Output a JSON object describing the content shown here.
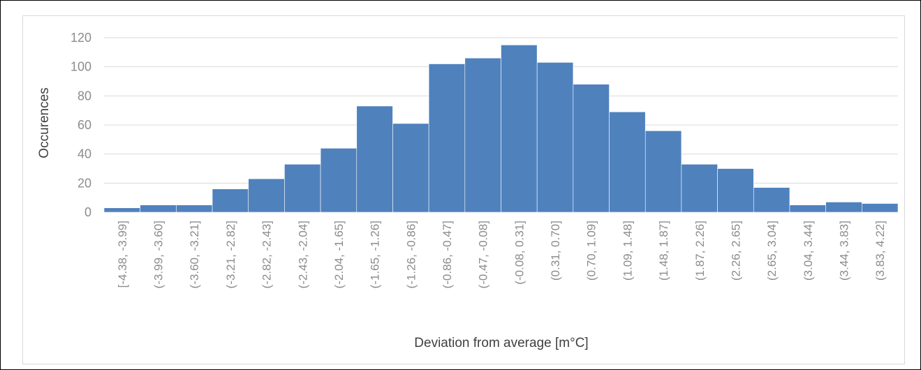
{
  "chart_data": {
    "type": "bar",
    "title": "",
    "xlabel": "Deviation from average [m°C]",
    "ylabel": "Occurences",
    "ylim": [
      0,
      120
    ],
    "yticks": [
      "0",
      "20",
      "40",
      "60",
      "80",
      "100",
      "120"
    ],
    "grid": true,
    "legend": "none",
    "bar_color": "#4f81bd",
    "categories": [
      "[-4.38, -3.99]",
      "(-3.99, -3.60]",
      "(-3.60, -3.21]",
      "(-3.21, -2.82]",
      "(-2.82, -2.43]",
      "(-2.43, -2.04]",
      "(-2.04, -1.65]",
      "(-1.65, -1.26]",
      "(-1.26, -0.86]",
      "(-0.86, -0.47]",
      "(-0.47, -0.08]",
      "(-0.08, 0.31]",
      "(0.31, 0.70]",
      "(0.70, 1.09]",
      "(1.09, 1.48]",
      "(1.48, 1.87]",
      "(1.87, 2.26]",
      "(2.26, 2.65]",
      "(2.65, 3.04]",
      "(3.04, 3.44]",
      "(3.44, 3.83]",
      "(3.83, 4.22]"
    ],
    "values": [
      3,
      5,
      5,
      16,
      23,
      33,
      44,
      73,
      61,
      102,
      106,
      115,
      103,
      88,
      69,
      56,
      33,
      30,
      17,
      5,
      7,
      6
    ]
  }
}
